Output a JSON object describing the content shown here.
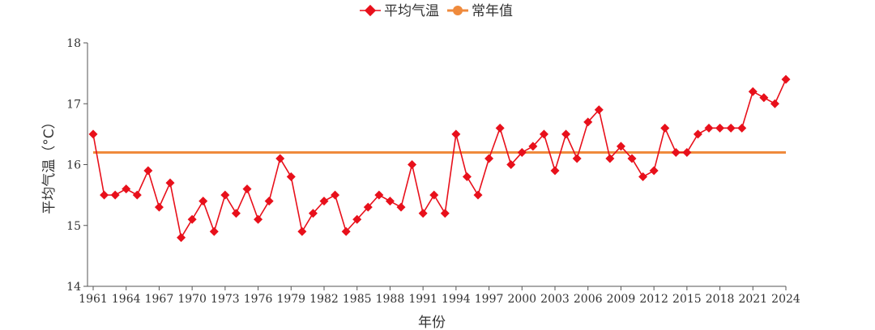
{
  "chart_data": {
    "type": "line",
    "xlabel": "年份",
    "ylabel": "平均气温（°C）",
    "ylim": [
      14,
      18
    ],
    "yticks": [
      14,
      15,
      16,
      17,
      18
    ],
    "xlim": [
      1961,
      2024
    ],
    "xticks": [
      1961,
      1964,
      1967,
      1970,
      1973,
      1976,
      1979,
      1982,
      1985,
      1988,
      1991,
      1994,
      1997,
      2000,
      2003,
      2006,
      2009,
      2012,
      2015,
      2018,
      2021,
      2024
    ],
    "legend_position": "top-center",
    "grid": false,
    "x": [
      1961,
      1962,
      1963,
      1964,
      1965,
      1966,
      1967,
      1968,
      1969,
      1970,
      1971,
      1972,
      1973,
      1974,
      1975,
      1976,
      1977,
      1978,
      1979,
      1980,
      1981,
      1982,
      1983,
      1984,
      1985,
      1986,
      1987,
      1988,
      1989,
      1990,
      1991,
      1992,
      1993,
      1994,
      1995,
      1996,
      1997,
      1998,
      1999,
      2000,
      2001,
      2002,
      2003,
      2004,
      2005,
      2006,
      2007,
      2008,
      2009,
      2010,
      2011,
      2012,
      2013,
      2014,
      2015,
      2016,
      2017,
      2018,
      2019,
      2020,
      2021,
      2022,
      2023,
      2024
    ],
    "series": [
      {
        "name": "平均气温",
        "color": "#e8101b",
        "marker": "diamond",
        "values": [
          16.5,
          15.5,
          15.5,
          15.6,
          15.5,
          15.9,
          15.3,
          15.7,
          14.8,
          15.1,
          15.4,
          14.9,
          15.5,
          15.2,
          15.6,
          15.1,
          15.4,
          16.1,
          15.8,
          14.9,
          15.2,
          15.4,
          15.5,
          14.9,
          15.1,
          15.3,
          15.5,
          15.4,
          15.3,
          16.0,
          15.2,
          15.5,
          15.2,
          16.5,
          15.8,
          15.5,
          16.1,
          16.6,
          16.0,
          16.2,
          16.3,
          16.5,
          15.9,
          16.5,
          16.1,
          16.7,
          16.9,
          16.1,
          16.3,
          16.1,
          15.8,
          15.9,
          16.6,
          16.2,
          16.2,
          16.5,
          16.6,
          16.6,
          16.6,
          16.6,
          17.2,
          17.1,
          17.0,
          17.4
        ]
      },
      {
        "name": "常年值",
        "color": "#ef8a3c",
        "marker": "circle",
        "constant": 16.2
      }
    ]
  }
}
